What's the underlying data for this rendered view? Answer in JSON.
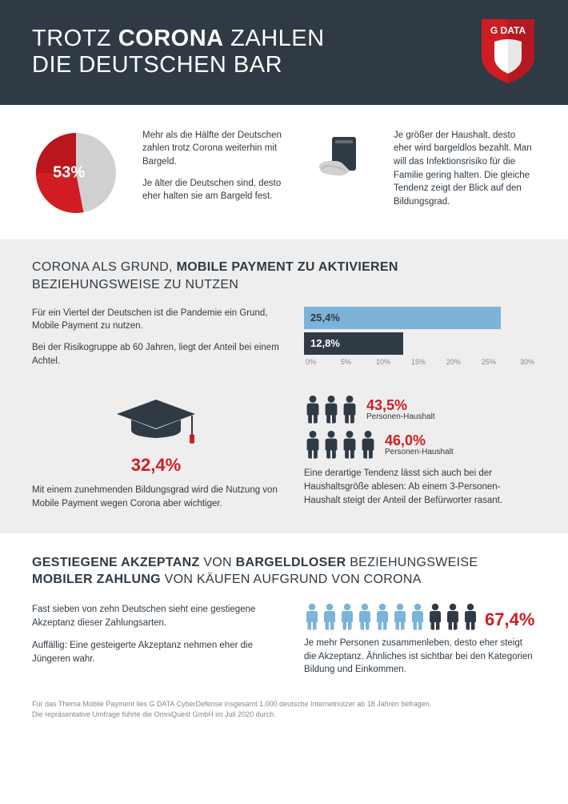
{
  "header": {
    "title_parts": [
      "TROTZ ",
      "CORONA",
      " ZAHLEN",
      "DIE DEUTSCHEN BAR"
    ],
    "logo_text": "G DATA",
    "logo_bg": "#cf1d23",
    "bg": "#2f3a44"
  },
  "section1": {
    "donut": {
      "percent": 53,
      "label": "53%",
      "fill_color": "#cf1d23",
      "rest_color": "#d0d0d0",
      "inner_dark": "#8a0f14"
    },
    "text_a1": "Mehr als die Hälfte der Deutschen zahlen trotz Corona weiterhin mit Bargeld.",
    "text_a2": "Je älter die Deutschen sind, desto eher halten sie am Bargeld fest.",
    "text_b1": "Je größer der Haushalt, desto eher wird bargeldlos bezahlt. Man will das Infektionsrisiko für die Familie gering halten. Die gleiche Tendenz zeigt der Blick auf den Bildungsgrad.",
    "card_icon_color": "#2f3a44"
  },
  "section2": {
    "heading_pre": "CORONA ALS GRUND, ",
    "heading_bold": "MOBILE PAYMENT ZU AKTIVIEREN",
    "heading_sub": "BEZIEHUNGSWEISE ZU NUTZEN",
    "text_a1": "Für ein Viertel der Deutschen ist die Pandemie ein Grund, Mobile Payment zu nutzen.",
    "text_a2": "Bei der Risikogruppe ab 60 Jahren, liegt der Anteil bei einem Achtel.",
    "bars": {
      "max": 30,
      "bar1": {
        "value": 25.4,
        "label": "25,4%",
        "color": "#7bb3d9",
        "text_color": "#2f3a44"
      },
      "bar2": {
        "value": 12.8,
        "label": "12,8%",
        "color": "#2f3a44",
        "text_color": "#ffffff"
      },
      "ticks": [
        "0%",
        "5%",
        "10%",
        "15%",
        "20%",
        "25%",
        "30%"
      ]
    },
    "grad_percent": "32,4%",
    "grad_text": "Mit einem zunehmenden Bildungsgrad wird die Nutzung von Mobile Payment wegen Corona aber wichtiger.",
    "grad_cap_color": "#2f3a44",
    "household1": {
      "count": 3,
      "percent": "43,5%",
      "label": "Personen-Haushalt"
    },
    "household2": {
      "count": 4,
      "percent": "46,0%",
      "label": "Personen-Haushalt"
    },
    "household_text": "Eine derartige Tendenz lässt sich auch bei der Haushaltsgröße ablesen: Ab einem 3-Personen-Haushalt steigt der Anteil der Befürworter rasant.",
    "person_color": "#2f3a44"
  },
  "section3": {
    "heading_parts": {
      "p1": "GESTIEGENE AKZEPTANZ",
      "p2": " VON ",
      "p3": "BARGELDLOSER",
      "p4": " BEZIEHUNGSWEISE",
      "p5": "MOBILER ZAHLUNG",
      "p6": " VON KÄUFEN AUFGRUND VON CORONA"
    },
    "text_a1": "Fast sieben von zehn Deutschen sieht eine gestiegene Akzeptanz dieser Zahlungsarten.",
    "text_a2": "Auffällig: Eine gesteigerte Akzeptanz nehmen eher die Jüngeren wahr.",
    "people": {
      "total": 10,
      "highlighted": 7,
      "on_color": "#7bb3d9",
      "off_color": "#2f3a44"
    },
    "percent": "67,4%",
    "right_text": "Je mehr Personen zusammenleben, desto eher steigt die Akzeptanz. Ähnliches ist sichtbar bei den Kategorien Bildung und Einkommen."
  },
  "footer": {
    "line1": "Für das Thema Mobile Payment lies G DATA CyberDefense insgesamt 1.000 deutsche Internetnutzer ab 18 Jahren befragen.",
    "line2": "Die repräsentative Umfrage führte die OmniQuest GmbH im Juli 2020 durch."
  }
}
